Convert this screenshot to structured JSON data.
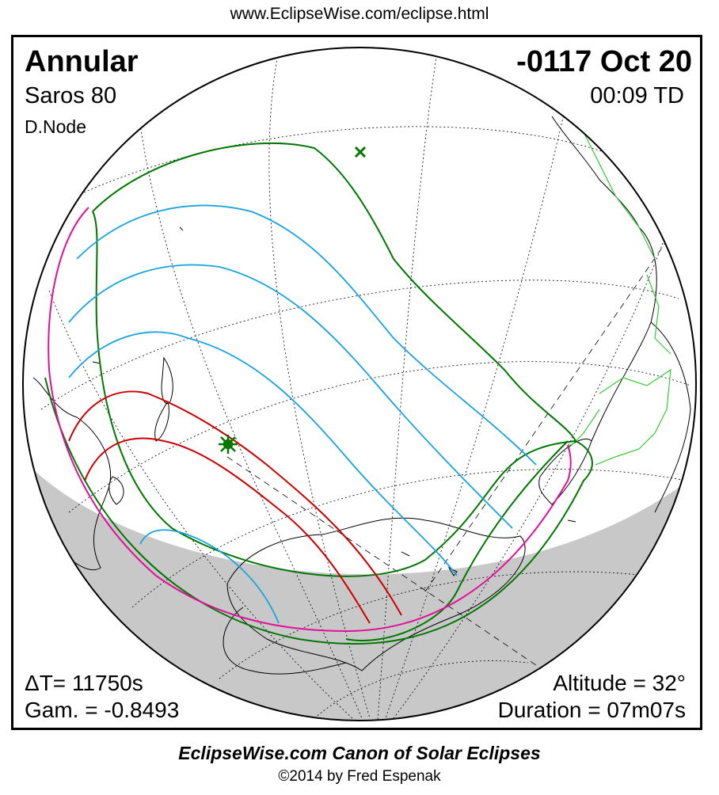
{
  "header": {
    "url": "www.EclipseWise.com/eclipse.html"
  },
  "eclipse": {
    "type": "Annular",
    "date": "-0117 Oct 20",
    "saros": "Saros  80",
    "time": "00:09 TD",
    "node": "D.Node",
    "delta_t": "ΔT=  11750s",
    "gamma": "Gam. = -0.8493",
    "altitude": "Altitude = 32°",
    "duration": "Duration = 07m07s"
  },
  "footer": {
    "canon": "EclipseWise.com Canon of Solar Eclipses",
    "copyright": "©2014 by Fred Espenak"
  },
  "map": {
    "colors": {
      "penumbra_limit": "#007700",
      "penumbral_magnitude": "#1aa3e0",
      "central_path": "#cc0000",
      "rise_set": "#e0109a",
      "night_shading": "#c8c8c8",
      "coastline": "#000000",
      "borders": "#33cc33",
      "graticule": "#000000"
    },
    "symbols": {
      "greatest_eclipse": "sun-star-icon",
      "subsolar_point": "x-mark-icon"
    }
  }
}
